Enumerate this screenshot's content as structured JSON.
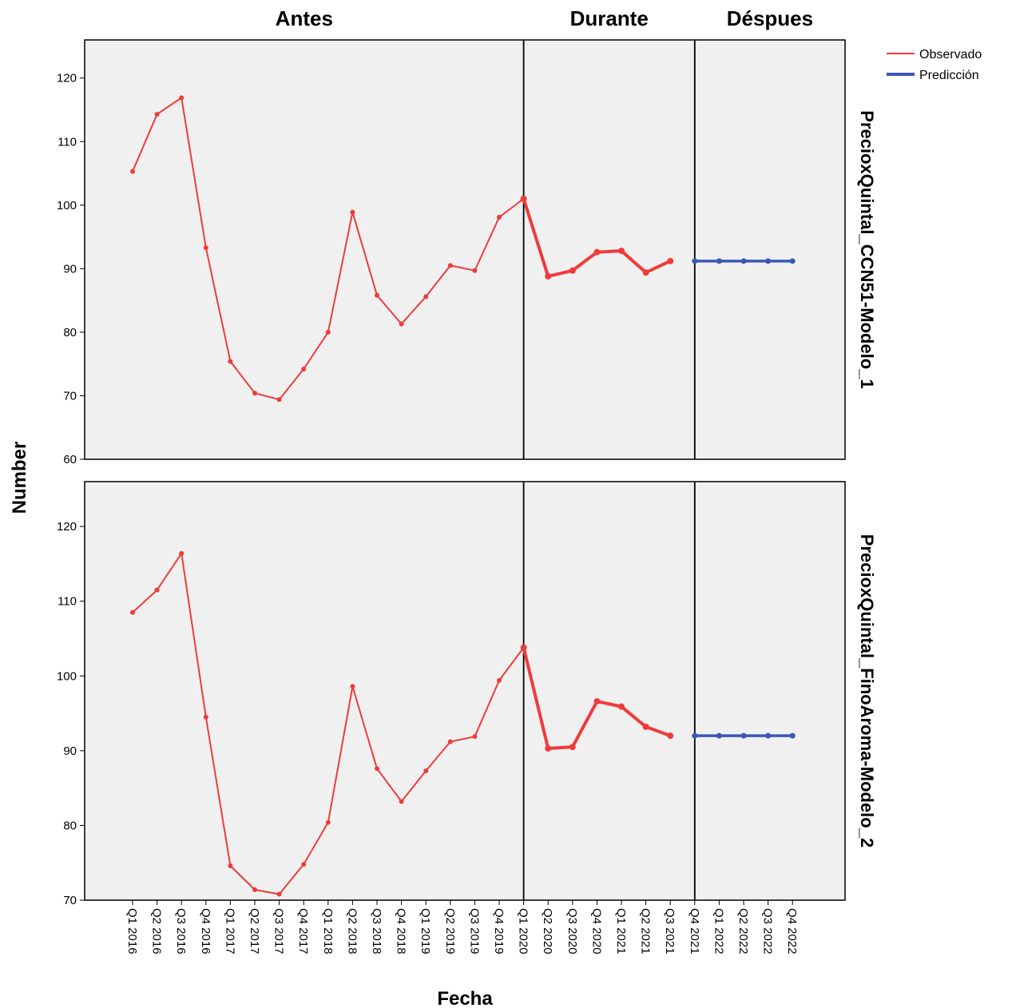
{
  "chart_data": {
    "type": "line",
    "x_label": "Fecha",
    "y_label": "Number",
    "categories": [
      "Q1 2016",
      "Q2 2016",
      "Q3 2016",
      "Q4 2016",
      "Q1 2017",
      "Q2 2017",
      "Q3 2017",
      "Q4 2017",
      "Q1 2018",
      "Q2 2018",
      "Q3 2018",
      "Q4 2018",
      "Q1 2019",
      "Q2 2019",
      "Q3 2019",
      "Q4 2019",
      "Q1 2020",
      "Q2 2020",
      "Q3 2020",
      "Q4 2020",
      "Q1 2021",
      "Q2 2021",
      "Q3 2021",
      "Q4 2021",
      "Q1 2022",
      "Q2 2022",
      "Q3 2022",
      "Q4 2022"
    ],
    "periods": [
      {
        "label": "Antes",
        "start": "Q1 2016",
        "end": "Q1 2020"
      },
      {
        "label": "Durante",
        "start": "Q1 2020",
        "end": "Q4 2021"
      },
      {
        "label": "Déspues",
        "start": "Q4 2021",
        "end": "Q4 2022"
      }
    ],
    "legend": {
      "position": "top-right",
      "items": [
        {
          "label": "Observado",
          "color": "#ef3b3b"
        },
        {
          "label": "Predicción",
          "color": "#3a56b8"
        }
      ]
    },
    "panels": [
      {
        "title": "PrecioxQuintal_CCN51-Modelo_1",
        "ylim": [
          60,
          126
        ],
        "yticks": [
          60,
          70,
          80,
          90,
          100,
          110,
          120
        ],
        "series": [
          {
            "name": "Observado",
            "color": "#ef3b3b",
            "start_index": 0,
            "values": [
              105.3,
              114.3,
              116.9,
              93.3,
              75.4,
              70.4,
              69.4,
              74.2,
              80.0,
              98.9,
              85.8,
              81.3,
              85.6,
              90.5,
              89.7,
              98.1,
              101.0,
              88.8,
              89.7,
              92.6,
              92.8,
              89.4,
              91.2
            ]
          },
          {
            "name": "Predicción",
            "color": "#3a56b8",
            "start_index": 23,
            "values": [
              91.2,
              91.2,
              91.2,
              91.2,
              91.2
            ]
          }
        ]
      },
      {
        "title": "PrecioxQuintal_FinoAroma-Modelo_2",
        "ylim": [
          70,
          126
        ],
        "yticks": [
          70,
          80,
          90,
          100,
          110,
          120
        ],
        "series": [
          {
            "name": "Observado",
            "color": "#ef3b3b",
            "start_index": 0,
            "values": [
              108.5,
              111.5,
              116.4,
              94.5,
              74.6,
              71.4,
              70.8,
              74.8,
              80.4,
              98.6,
              87.6,
              83.2,
              87.3,
              91.2,
              91.9,
              99.4,
              103.8,
              90.3,
              90.5,
              96.6,
              95.9,
              93.2,
              92.0
            ]
          },
          {
            "name": "Predicción",
            "color": "#3a56b8",
            "start_index": 23,
            "values": [
              92.0,
              92.0,
              92.0,
              92.0,
              92.0
            ]
          }
        ]
      }
    ]
  }
}
